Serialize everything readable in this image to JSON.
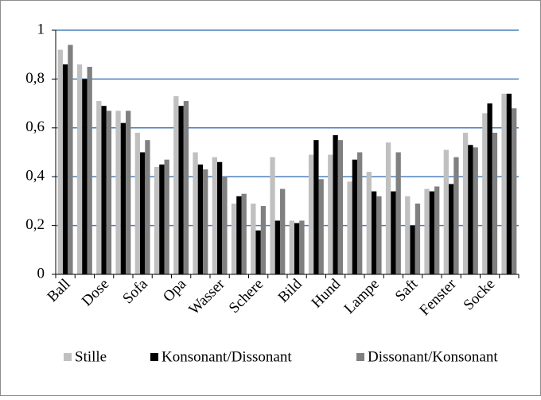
{
  "chart_data": {
    "type": "bar",
    "categories": [
      "Ball",
      null,
      "Dose",
      null,
      "Sofa",
      null,
      "Opa",
      null,
      "Wasser",
      null,
      "Schere",
      null,
      "Bild",
      null,
      "Hund",
      null,
      "Lampe",
      null,
      "Saft",
      null,
      "Fenster",
      null,
      "Socke",
      null
    ],
    "series": [
      {
        "name": "Stille",
        "color": "#c0c0c0",
        "values": [
          0.92,
          0.86,
          0.71,
          0.67,
          0.58,
          0.44,
          0.73,
          0.5,
          0.48,
          0.29,
          0.29,
          0.48,
          0.22,
          0.49,
          0.49,
          0.38,
          0.42,
          0.54,
          0.32,
          0.35,
          0.51,
          0.58,
          0.66,
          0.74
        ]
      },
      {
        "name": "Konsonant/Dissonant",
        "color": "#000000",
        "values": [
          0.86,
          0.8,
          0.69,
          0.62,
          0.5,
          0.45,
          0.69,
          0.45,
          0.46,
          0.32,
          0.18,
          0.22,
          0.21,
          0.55,
          0.57,
          0.47,
          0.34,
          0.34,
          0.2,
          0.34,
          0.37,
          0.53,
          0.7,
          0.74
        ]
      },
      {
        "name": "Dissonant/Konsonant",
        "color": "#808080",
        "values": [
          0.94,
          0.85,
          0.67,
          0.67,
          0.55,
          0.47,
          0.71,
          0.43,
          0.4,
          0.33,
          0.28,
          0.35,
          0.22,
          0.39,
          0.55,
          0.5,
          0.32,
          0.5,
          0.29,
          0.36,
          0.48,
          0.52,
          0.58,
          0.68
        ]
      }
    ],
    "ylim": [
      0,
      1
    ],
    "yticks": [
      0,
      {
        "value": 0.2,
        "label": "0,2"
      },
      {
        "value": 0.4,
        "label": "0,4"
      },
      {
        "value": 0.6,
        "label": "0,6"
      },
      {
        "value": 0.8,
        "label": "0,8"
      },
      1
    ],
    "grid": true,
    "grid_color": "#4a7ebb",
    "legend": "bottom"
  }
}
